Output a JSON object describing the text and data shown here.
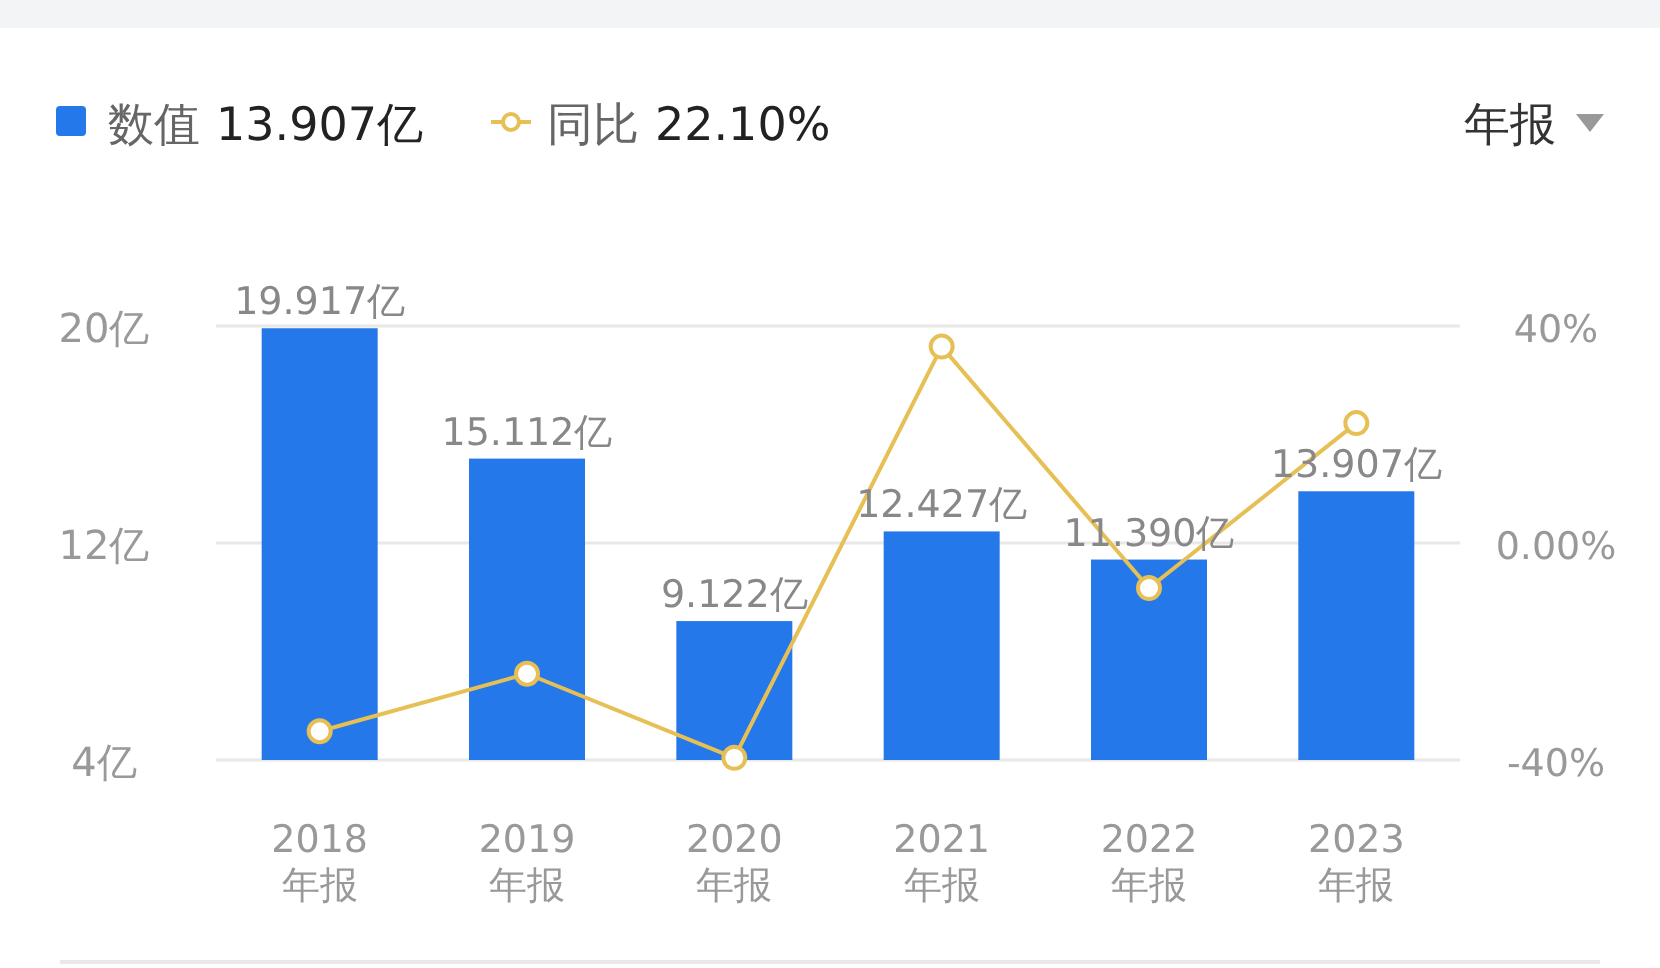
{
  "chart_data": {
    "type": "bar",
    "categories": [
      "2018 年报",
      "2019 年报",
      "2020 年报",
      "2021 年报",
      "2022 年报",
      "2023 年报"
    ],
    "series": [
      {
        "name": "数值 13.907亿",
        "color": "#2478ea",
        "values": [
          19.917,
          15.112,
          9.122,
          12.427,
          11.39,
          13.907
        ],
        "value_labels": [
          "19.917亿",
          "15.112亿",
          "9.122亿",
          "12.427亿",
          "11.390亿",
          "13.907亿"
        ]
      },
      {
        "type": "line",
        "name": "同比 22.10%",
        "color": "#e6bf55",
        "axis": "y2",
        "marker": "circle",
        "values": [
          -34.7,
          -24.1,
          -39.6,
          36.2,
          -8.3,
          22.1
        ]
      }
    ],
    "ylim": [
      4,
      20
    ],
    "yticks": [
      {
        "value": 4,
        "label": "4亿"
      },
      {
        "value": 12,
        "label": "12亿"
      },
      {
        "value": 20,
        "label": "20亿"
      }
    ],
    "y2lim": [
      -40,
      40
    ],
    "y2ticks": [
      {
        "value": -40,
        "label": "-40%"
      },
      {
        "value": 0,
        "label": "0.00%"
      },
      {
        "value": 40,
        "label": "40%"
      }
    ],
    "grid": "y",
    "legend": "top left",
    "annotations": [
      "年报"
    ]
  }
}
